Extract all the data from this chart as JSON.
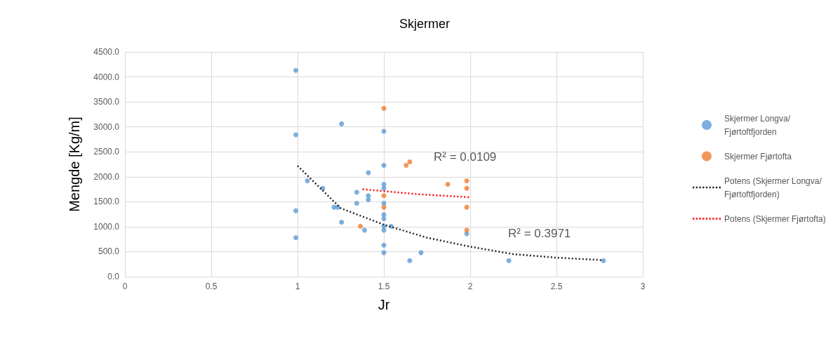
{
  "chart_data": {
    "type": "scatter",
    "title": "Skjermer",
    "xlabel": "Jr",
    "ylabel": "Mengde [Kg/m]",
    "xlim": [
      0,
      3
    ],
    "xticks": [
      0,
      0.5,
      1,
      1.5,
      2,
      2.5,
      3
    ],
    "ylim": [
      0,
      4500
    ],
    "yticks": [
      {
        "value": 0,
        "label": "0.0"
      },
      {
        "value": 500,
        "label": "500.0"
      },
      {
        "value": 1000,
        "label": "1000.0"
      },
      {
        "value": 1500,
        "label": "1500.0"
      },
      {
        "value": 2000,
        "label": "2000.0"
      },
      {
        "value": 2500,
        "label": "2500.0"
      },
      {
        "value": 3000,
        "label": "3000.0"
      },
      {
        "value": 3500,
        "label": "3500.0"
      },
      {
        "value": 4000,
        "label": "4000.0"
      },
      {
        "value": 4500,
        "label": "4500.0"
      }
    ],
    "grid": true,
    "legend": "right",
    "marker": "circle",
    "series": [
      {
        "name": "Skjermer Longva/Fjørtoftfjorden",
        "color": "#5b9bd5",
        "x": [
          0.99,
          0.99,
          1.255,
          1.5,
          1.5,
          1.41,
          1.057,
          1.146,
          1.343,
          1.5,
          1.5,
          1.41,
          1.41,
          1.343,
          1.5,
          1.211,
          1.233,
          0.99,
          1.5,
          1.5,
          1.255,
          1.5,
          1.5,
          1.542,
          1.388,
          0.99,
          1.5,
          1.5,
          1.65,
          1.715,
          1.98,
          2.224,
          2.772
        ],
        "values": [
          4130,
          2840,
          3060,
          2910,
          2230,
          2080,
          1920,
          1770,
          1690,
          1850,
          1770,
          1620,
          1540,
          1470,
          1470,
          1390,
          1390,
          1320,
          1240,
          1160,
          1090,
          1010,
          930,
          1010,
          930,
          780,
          630,
          480,
          320,
          480,
          860,
          320,
          320
        ]
      },
      {
        "name": "Skjermer Fjørtofta",
        "color": "#ed7d31",
        "x": [
          1.5,
          1.629,
          1.65,
          1.87,
          1.98,
          1.98,
          1.5,
          1.5,
          1.98,
          1.364,
          1.98
        ],
        "values": [
          3370,
          2230,
          2300,
          1850,
          1920,
          1770,
          1620,
          1390,
          1390,
          1010,
          930
        ]
      },
      {
        "name": "Potens (Skjermer Longva/Fjørtoftfjorden)",
        "type": "line",
        "color": "#262626",
        "marker": "none",
        "line_style": "dotted",
        "x": [
          1,
          1.25,
          1.5,
          1.75,
          2,
          2.25,
          2.5,
          2.77
        ],
        "values": [
          2220,
          1370,
          1040,
          780,
          600,
          450,
          380,
          330
        ]
      },
      {
        "name": "Potens (Skjermer Fjørtofta)",
        "type": "line",
        "color": "#ff0000",
        "marker": "none",
        "line_style": "dotted",
        "x": [
          1.377,
          1.7,
          1.993
        ],
        "values": [
          1750,
          1650,
          1590
        ]
      }
    ],
    "annotations": [
      "R² = 0.0109",
      "R² = 0.3971"
    ]
  }
}
